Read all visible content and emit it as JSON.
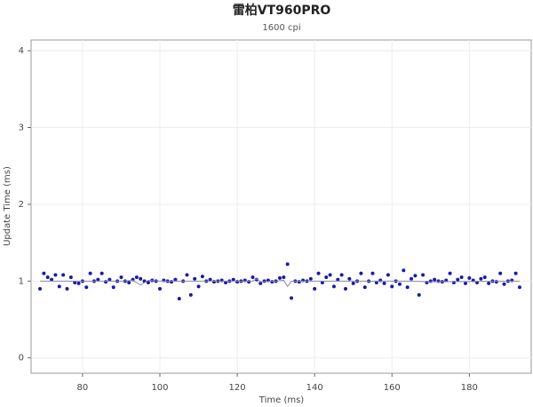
{
  "chart_data": {
    "type": "scatter",
    "title": "雷柏VT960PRO",
    "subtitle": "1600 cpi",
    "x_label": "Time (ms)",
    "y_label": "Update Time (ms)",
    "xlim": [
      66.7,
      196
    ],
    "ylim": [
      -0.2,
      4.14
    ],
    "xticks": [
      80,
      100,
      120,
      140,
      160,
      180
    ],
    "yticks": [
      0,
      1,
      2,
      3,
      4
    ],
    "grid": true,
    "series": [
      {
        "type": "scatter",
        "color": "#1a1aa8",
        "x": [
          69,
          70,
          71,
          72,
          73,
          74,
          75,
          76,
          77,
          78,
          79,
          80,
          81,
          82,
          83,
          84,
          85,
          86,
          87,
          88,
          89,
          90,
          91,
          92,
          93,
          94,
          95,
          96,
          97,
          98,
          99,
          100,
          101,
          102,
          103,
          104,
          105,
          106,
          107,
          108,
          109,
          110,
          111,
          112,
          113,
          114,
          115,
          116,
          117,
          118,
          119,
          120,
          121,
          122,
          123,
          124,
          125,
          126,
          127,
          128,
          129,
          130,
          131,
          132,
          133,
          134,
          135,
          136,
          137,
          138,
          139,
          140,
          141,
          142,
          143,
          144,
          145,
          146,
          147,
          148,
          149,
          150,
          151,
          152,
          153,
          154,
          155,
          156,
          157,
          158,
          159,
          160,
          161,
          162,
          163,
          164,
          165,
          166,
          167,
          168,
          169,
          170,
          171,
          172,
          173,
          174,
          175,
          176,
          177,
          178,
          179,
          180,
          181,
          182,
          183,
          184,
          185,
          186,
          187,
          188,
          189,
          190,
          191,
          192,
          193
        ],
        "values": [
          0.9,
          1.1,
          1.05,
          1.02,
          1.08,
          0.93,
          1.08,
          0.9,
          1.05,
          0.98,
          0.97,
          1.0,
          0.92,
          1.1,
          1.0,
          1.02,
          1.1,
          0.99,
          1.02,
          0.92,
          1.0,
          1.05,
          1.0,
          0.98,
          1.02,
          1.05,
          1.03,
          1.0,
          0.98,
          1.01,
          1.0,
          0.9,
          1.01,
          1.0,
          0.99,
          1.02,
          0.77,
          1.0,
          1.08,
          0.82,
          1.03,
          0.93,
          1.06,
          1.0,
          1.02,
          0.99,
          1.0,
          1.01,
          0.98,
          1.0,
          1.02,
          0.99,
          1.0,
          1.01,
          0.99,
          1.05,
          1.02,
          0.97,
          1.0,
          1.01,
          0.99,
          1.0,
          1.04,
          1.05,
          1.22,
          0.78,
          1.0,
          0.99,
          1.01,
          1.0,
          1.03,
          0.9,
          1.1,
          0.98,
          1.05,
          1.08,
          0.93,
          1.02,
          1.08,
          0.9,
          1.03,
          0.97,
          1.0,
          1.1,
          0.92,
          1.0,
          1.1,
          0.98,
          1.01,
          0.97,
          1.08,
          0.93,
          1.0,
          0.96,
          1.14,
          0.92,
          1.03,
          1.07,
          0.82,
          1.08,
          0.98,
          1.0,
          1.02,
          1.0,
          0.99,
          1.01,
          1.1,
          0.98,
          1.02,
          1.05,
          0.97,
          1.04,
          1.01,
          0.98,
          1.03,
          1.05,
          0.97,
          1.0,
          0.99,
          1.1,
          0.96,
          1.0,
          1.01,
          1.1,
          0.92
        ]
      },
      {
        "type": "line",
        "color": "#8a8ab0",
        "x": [
          69,
          75,
          80,
          85,
          90,
          93,
          95,
          97,
          100,
          110,
          120,
          124,
          125,
          126,
          130,
          132,
          133,
          134,
          136,
          150,
          165,
          170,
          190,
          193
        ],
        "values": [
          1.0,
          1.0,
          1.0,
          1.0,
          1.0,
          1.01,
          0.95,
          1.01,
          1.0,
          1.0,
          1.0,
          1.0,
          1.03,
          0.99,
          1.0,
          1.01,
          0.93,
          1.0,
          1.0,
          1.0,
          1.0,
          0.99,
          1.0,
          1.0
        ]
      }
    ]
  }
}
